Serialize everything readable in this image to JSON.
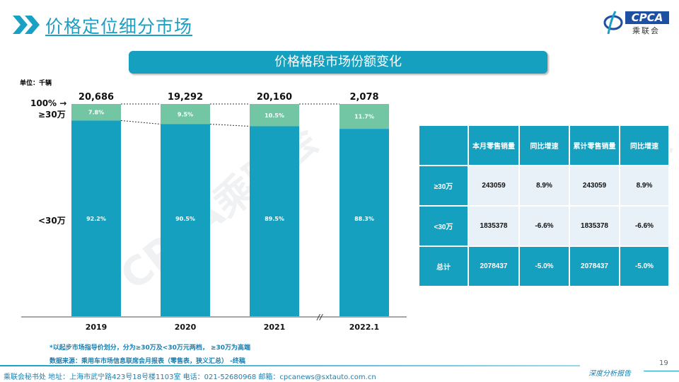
{
  "header": {
    "title": "价格定位细分市场",
    "logo_text": "CPCA",
    "logo_sub": "乘联会",
    "logo_small": "CPCA"
  },
  "section_title": "价格格段市场份额变化",
  "unit": "单位：千辆",
  "colors": {
    "accent": "#16a0bf",
    "high": "#72c6a4",
    "low": "#16a0bf"
  },
  "chart_data": {
    "type": "bar",
    "stacked": true,
    "normalized": true,
    "categories": [
      "2019",
      "2020",
      "2021",
      "2022.1"
    ],
    "totals": [
      "20,686",
      "19,292",
      "20,160",
      "2,078"
    ],
    "series": [
      {
        "name": "<30万",
        "values": [
          92.2,
          90.5,
          89.5,
          88.3
        ],
        "labels": [
          "92.2%",
          "90.5%",
          "89.5%",
          "88.3%"
        ]
      },
      {
        "name": "≥30万",
        "values": [
          7.8,
          9.5,
          10.5,
          11.7
        ],
        "labels": [
          "7.8%",
          "9.5%",
          "10.5%",
          "11.7%"
        ]
      }
    ],
    "ylim": [
      0,
      100
    ],
    "top_label": "100%",
    "axis_break": "//",
    "watermark": "CPCA乘联会"
  },
  "table": {
    "headers": [
      "",
      "本月零售销量",
      "同比增速",
      "累计零售销量",
      "同比增速"
    ],
    "rows": [
      [
        "≥30万",
        "243059",
        "8.9%",
        "243059",
        "8.9%"
      ],
      [
        "<30万",
        "1835378",
        "-6.6%",
        "1835378",
        "-6.6%"
      ],
      [
        "总计",
        "2078437",
        "-5.0%",
        "2078437",
        "-5.0%"
      ]
    ]
  },
  "notes": [
    "*以起步市场指导价划分，分为≥30万及<30万元两档， ≥30万为高端",
    "数据来源：乘用车市场信息联席会月报表（零售表，狭义汇总） -终稿"
  ],
  "footer": {
    "text": "乘联会秘书处   地址：上海市武宁路423号18号楼1103室  电话：021-52680968   邮箱：cpcanews@sxtauto.com.cn",
    "report": "深度分析报告",
    "page": "19"
  }
}
